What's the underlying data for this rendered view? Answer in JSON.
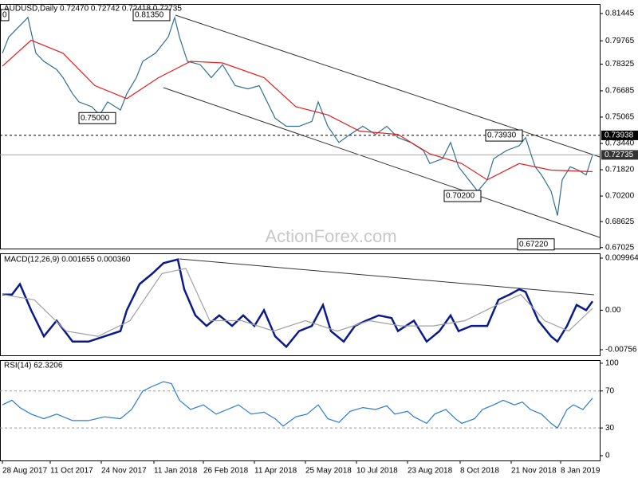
{
  "chart_data": [
    {
      "type": "line",
      "title": "AUDUSD,Daily  0.72470 0.72742 0.72418 0.72735",
      "watermark": "ActionForex.com",
      "xlim": [
        -1.5,
        374.5
      ],
      "ylim": [
        0.66963,
        0.82034
      ],
      "yticks": [
        0.81445,
        {
          "value": 0.79765,
          "label": "0.79765"
        },
        0.78325,
        0.76685,
        0.75065,
        {
          "value": 0.7344,
          "label": "0.73440"
        },
        {
          "value": 0.7182,
          "label": "0.71820"
        },
        {
          "value": 0.702,
          "label": "0.70200"
        },
        0.68625,
        0.67025
      ],
      "levels": [
        0.73938,
        0.72735
      ],
      "annotations": [
        {
          "text": "0",
          "value": 0.8135,
          "x": 3
        },
        {
          "text": "0.81350",
          "value": 0.8135,
          "x": 105
        },
        {
          "text": "0.75000",
          "value": 0.75,
          "x": 71
        },
        {
          "text": "0.73930",
          "value": 0.7393,
          "x": 326
        },
        {
          "text": "0.70200",
          "value": 0.702,
          "x": 300
        },
        {
          "text": "0.67220",
          "value": 0.6722,
          "x": 346
        }
      ],
      "series": [
        {
          "color": "#2f6f8f",
          "x": [
            0,
            4,
            9,
            16,
            21,
            26,
            34,
            38,
            44,
            48,
            56,
            61,
            66,
            74,
            78,
            84,
            88,
            96,
            104,
            108,
            111,
            116,
            124,
            131,
            138,
            146,
            154,
            161,
            166,
            171,
            178,
            186,
            194,
            198,
            204,
            211,
            218,
            226,
            234,
            241,
            248,
            256,
            264,
            268,
            276,
            281,
            286,
            294,
            298,
            304,
            308,
            316,
            324,
            328,
            334,
            338,
            344,
            348,
            351,
            356,
            361,
            366,
            370
          ],
          "values": [
            0.79,
            0.8,
            0.805,
            0.812,
            0.79,
            0.785,
            0.78,
            0.775,
            0.765,
            0.76,
            0.757,
            0.752,
            0.76,
            0.755,
            0.765,
            0.775,
            0.785,
            0.79,
            0.8,
            0.812,
            0.8,
            0.785,
            0.783,
            0.775,
            0.783,
            0.77,
            0.768,
            0.77,
            0.76,
            0.75,
            0.745,
            0.745,
            0.748,
            0.76,
            0.745,
            0.735,
            0.74,
            0.745,
            0.74,
            0.745,
            0.738,
            0.735,
            0.73,
            0.722,
            0.725,
            0.735,
            0.72,
            0.71,
            0.705,
            0.712,
            0.725,
            0.73,
            0.733,
            0.738,
            0.72,
            0.715,
            0.705,
            0.69,
            0.712,
            0.72,
            0.718,
            0.715,
            0.7273
          ]
        },
        {
          "color": "#e02020",
          "x": [
            0,
            18,
            38,
            58,
            78,
            98,
            118,
            138,
            164,
            184,
            204,
            224,
            248,
            268,
            288,
            304,
            324,
            344,
            370
          ],
          "values": [
            0.782,
            0.798,
            0.79,
            0.77,
            0.762,
            0.775,
            0.785,
            0.784,
            0.775,
            0.757,
            0.752,
            0.742,
            0.74,
            0.728,
            0.722,
            0.712,
            0.722,
            0.718,
            0.717
          ]
        }
      ]
    },
    {
      "type": "line",
      "title": "MACD(12,26,9) 0.001655 0.000360",
      "xlim": [
        -1.5,
        374.5
      ],
      "ylim": [
        -0.008627,
        0.010878
      ],
      "yticks": [
        0.009964,
        {
          "value": 0,
          "label": "0.00"
        },
        -0.00756
      ],
      "series": [
        {
          "color": "#0a1a8c",
          "x": [
            0,
            6,
            11,
            18,
            26,
            34,
            44,
            54,
            64,
            74,
            78,
            86,
            94,
            101,
            110,
            114,
            121,
            128,
            136,
            144,
            151,
            158,
            164,
            171,
            178,
            186,
            194,
            201,
            206,
            214,
            221,
            228,
            236,
            244,
            248,
            258,
            266,
            274,
            281,
            286,
            294,
            304,
            311,
            318,
            324,
            328,
            336,
            344,
            348,
            354,
            360,
            366,
            370
          ],
          "values": [
            0.003,
            0.003,
            0.005,
            0.0,
            -0.005,
            -0.002,
            -0.006,
            -0.006,
            -0.005,
            -0.004,
            0.0,
            0.005,
            0.007,
            0.009,
            0.0097,
            0.004,
            -0.001,
            -0.003,
            -0.001,
            -0.003,
            -0.001,
            -0.003,
            0.0,
            -0.005,
            -0.007,
            -0.004,
            -0.003,
            0.001,
            -0.004,
            -0.006,
            -0.003,
            -0.002,
            -0.001,
            -0.0015,
            -0.004,
            -0.002,
            -0.006,
            -0.004,
            -0.001,
            -0.004,
            -0.003,
            -0.003,
            0.002,
            0.003,
            0.004,
            0.0035,
            -0.002,
            -0.005,
            -0.006,
            -0.003,
            0.001,
            0.0,
            0.0017
          ]
        },
        {
          "color": "#a0a0a0",
          "x": [
            0,
            20,
            40,
            60,
            80,
            100,
            115,
            130,
            150,
            170,
            190,
            210,
            230,
            250,
            270,
            290,
            310,
            325,
            340,
            355,
            370
          ],
          "values": [
            0.003,
            0.002,
            -0.004,
            -0.005,
            -0.002,
            0.007,
            0.008,
            -0.002,
            -0.002,
            -0.004,
            -0.002,
            -0.004,
            -0.002,
            -0.003,
            -0.003,
            -0.002,
            0.001,
            0.003,
            -0.002,
            -0.004,
            0.00036
          ]
        }
      ]
    },
    {
      "type": "line",
      "title": "RSI(14) 62.3206",
      "xlim": [
        -1.5,
        374.5
      ],
      "ylim": [
        -5.2,
        103.4
      ],
      "yticks": [
        100,
        70,
        30,
        0
      ],
      "levels": [
        70,
        30
      ],
      "xticks": [
        {
          "value": 0,
          "label": "28 Aug 2017"
        },
        {
          "value": 30,
          "label": "11 Oct 2017"
        },
        {
          "value": 62,
          "label": "24 Nov 2017"
        },
        {
          "value": 95,
          "label": "11 Jan 2018"
        },
        {
          "value": 126,
          "label": "26 Feb 2018"
        },
        {
          "value": 158,
          "label": "11 Apr 2018"
        },
        {
          "value": 190,
          "label": "25 May 2018"
        },
        {
          "value": 222,
          "label": "10 Jul 2018"
        },
        {
          "value": 254,
          "label": "23 Aug 2018"
        },
        {
          "value": 287,
          "label": "8 Oct 2018"
        },
        {
          "value": 319,
          "label": "21 Nov 2018"
        },
        {
          "value": 350,
          "label": "8 Jan 2019"
        }
      ],
      "series": [
        {
          "color": "#2a7bd0",
          "x": [
            0,
            6,
            11,
            18,
            26,
            34,
            44,
            54,
            64,
            74,
            81,
            88,
            94,
            101,
            106,
            111,
            118,
            126,
            134,
            141,
            148,
            156,
            164,
            171,
            176,
            184,
            191,
            198,
            204,
            211,
            218,
            226,
            234,
            241,
            246,
            254,
            258,
            266,
            271,
            278,
            284,
            288,
            296,
            301,
            308,
            314,
            321,
            326,
            331,
            338,
            344,
            348,
            354,
            358,
            364,
            370
          ],
          "values": [
            55,
            60,
            52,
            45,
            40,
            45,
            38,
            38,
            42,
            40,
            50,
            70,
            75,
            80,
            78,
            60,
            50,
            55,
            45,
            50,
            55,
            45,
            47,
            40,
            32,
            42,
            45,
            55,
            40,
            36,
            48,
            52,
            50,
            54,
            45,
            48,
            42,
            35,
            45,
            50,
            40,
            35,
            40,
            50,
            55,
            60,
            55,
            58,
            50,
            45,
            35,
            30,
            50,
            55,
            50,
            62.3206
          ]
        }
      ]
    }
  ]
}
